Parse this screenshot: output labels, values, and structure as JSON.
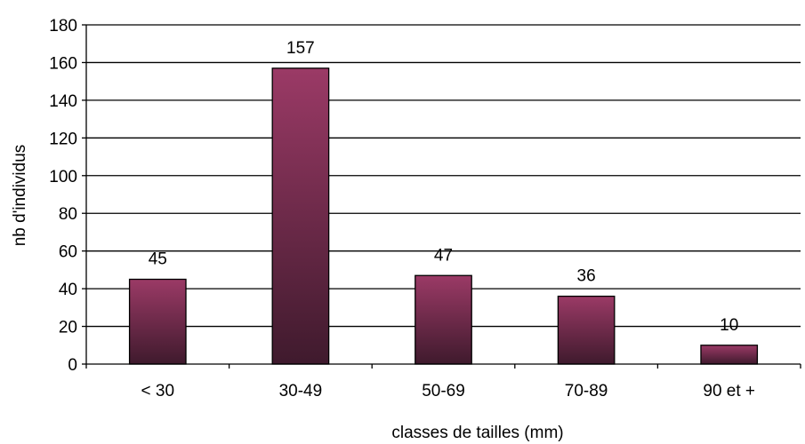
{
  "chart_data": {
    "type": "bar",
    "categories": [
      "< 30",
      "30-49",
      "50-69",
      "70-89",
      "90 et +"
    ],
    "values": [
      45,
      157,
      47,
      36,
      10
    ],
    "data_labels": [
      "45",
      "157",
      "47",
      "36",
      "10"
    ],
    "title": "",
    "xlabel": "classes de tailles (mm)",
    "ylabel": "nb d'individus",
    "ylim": [
      0,
      180
    ],
    "yticks": [
      0,
      20,
      40,
      60,
      80,
      100,
      120,
      140,
      160,
      180
    ],
    "ytick_labels": [
      "0",
      "20",
      "40",
      "60",
      "80",
      "100",
      "120",
      "140",
      "160",
      "180"
    ],
    "grid": "horizontal",
    "legend": "none",
    "colors": {
      "bar_top": "#9b3a66",
      "bar_bottom": "#3f1a2d",
      "bar_edge": "#000000",
      "grid": "#000000",
      "axis": "#000000"
    }
  }
}
